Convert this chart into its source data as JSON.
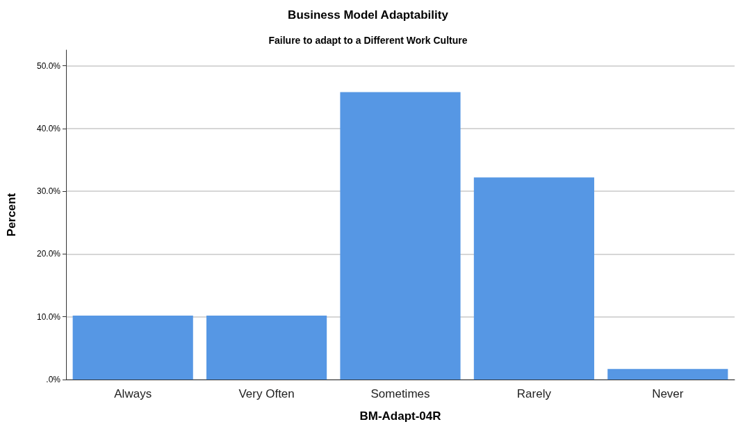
{
  "chart_data": {
    "type": "bar",
    "title": "Business Model Adaptability",
    "subtitle": "Failure to adapt to a Different Work Culture",
    "xlabel": "BM-Adapt-04R",
    "ylabel": "Percent",
    "categories": [
      "Always",
      "Very Often",
      "Sometimes",
      "Rarely",
      "Never"
    ],
    "values": [
      10.2,
      10.2,
      45.8,
      32.2,
      1.7
    ],
    "color": "#5697e4",
    "ylim": [
      0,
      52.5
    ],
    "yticks": [
      {
        "value": 0,
        "label": ".0%"
      },
      {
        "value": 10,
        "label": "10.0%"
      },
      {
        "value": 20,
        "label": "20.0%"
      },
      {
        "value": 30,
        "label": "30.0%"
      },
      {
        "value": 40,
        "label": "40.0%"
      },
      {
        "value": 50,
        "label": "50.0%"
      }
    ],
    "grid": "y"
  }
}
